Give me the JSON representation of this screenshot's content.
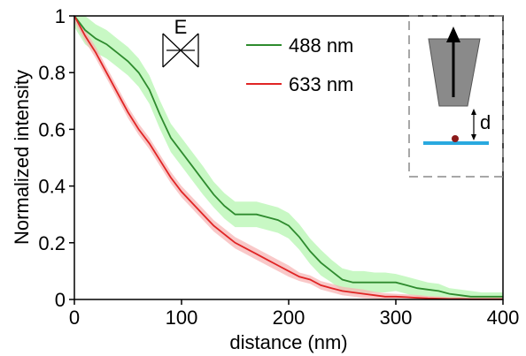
{
  "chart_data": {
    "type": "line",
    "xlabel": "distance (nm)",
    "ylabel": "Normalized intensity",
    "xlim": [
      0,
      400
    ],
    "ylim": [
      0,
      1
    ],
    "x_ticks": [
      "0",
      "100",
      "200",
      "300",
      "400"
    ],
    "y_ticks": [
      "0",
      "0.2",
      "0.4",
      "0.6",
      "0.8",
      "1"
    ],
    "grid": false,
    "legend": "top-center",
    "series": [
      {
        "name": "488 nm",
        "color": "#2e8b2e",
        "band_color": "#b5f5b0",
        "x": [
          0,
          10,
          20,
          30,
          40,
          50,
          60,
          70,
          80,
          90,
          100,
          110,
          120,
          130,
          140,
          150,
          160,
          170,
          180,
          190,
          200,
          210,
          220,
          230,
          240,
          250,
          260,
          270,
          280,
          290,
          300,
          310,
          320,
          330,
          340,
          350,
          360,
          370,
          380,
          390,
          400
        ],
        "y": [
          1.0,
          0.95,
          0.92,
          0.9,
          0.87,
          0.84,
          0.8,
          0.74,
          0.65,
          0.57,
          0.52,
          0.47,
          0.42,
          0.37,
          0.33,
          0.3,
          0.3,
          0.3,
          0.29,
          0.28,
          0.26,
          0.22,
          0.17,
          0.13,
          0.1,
          0.07,
          0.06,
          0.06,
          0.06,
          0.06,
          0.06,
          0.05,
          0.04,
          0.035,
          0.03,
          0.02,
          0.015,
          0.01,
          0.01,
          0.01,
          0.01
        ],
        "band": [
          0.04,
          0.05,
          0.05,
          0.05,
          0.05,
          0.05,
          0.05,
          0.05,
          0.05,
          0.05,
          0.05,
          0.05,
          0.05,
          0.045,
          0.045,
          0.045,
          0.045,
          0.045,
          0.045,
          0.045,
          0.045,
          0.045,
          0.045,
          0.045,
          0.04,
          0.04,
          0.04,
          0.04,
          0.035,
          0.035,
          0.03,
          0.03,
          0.03,
          0.025,
          0.025,
          0.02,
          0.02,
          0.02,
          0.015,
          0.015,
          0.015
        ]
      },
      {
        "name": "633 nm",
        "color": "#e02525",
        "band_color": "#f7b6b6",
        "x": [
          0,
          10,
          20,
          30,
          40,
          50,
          60,
          70,
          80,
          90,
          100,
          110,
          120,
          130,
          140,
          150,
          160,
          170,
          180,
          190,
          200,
          210,
          220,
          230,
          240,
          250,
          260,
          270,
          280,
          290,
          300,
          310,
          320,
          330,
          340,
          350,
          360,
          370,
          380,
          390,
          400
        ],
        "y": [
          1.0,
          0.93,
          0.87,
          0.8,
          0.73,
          0.66,
          0.6,
          0.55,
          0.49,
          0.43,
          0.38,
          0.34,
          0.3,
          0.26,
          0.23,
          0.2,
          0.18,
          0.16,
          0.14,
          0.12,
          0.1,
          0.08,
          0.07,
          0.05,
          0.04,
          0.03,
          0.025,
          0.02,
          0.015,
          0.01,
          0.01,
          0.008,
          0.006,
          0.004,
          0.003,
          0.002,
          0.002,
          0.001,
          0.001,
          0.001,
          0.001
        ],
        "band": [
          0.02,
          0.02,
          0.02,
          0.02,
          0.02,
          0.02,
          0.02,
          0.02,
          0.02,
          0.02,
          0.02,
          0.02,
          0.02,
          0.02,
          0.02,
          0.02,
          0.02,
          0.02,
          0.02,
          0.02,
          0.02,
          0.015,
          0.015,
          0.015,
          0.015,
          0.015,
          0.015,
          0.015,
          0.012,
          0.012,
          0.01,
          0.01,
          0.01,
          0.008,
          0.008,
          0.006,
          0.006,
          0.005,
          0.005,
          0.005,
          0.005
        ]
      }
    ],
    "annotations": {
      "polarization_label": "E",
      "distance_label": "d"
    },
    "colors": {
      "tip": "#8a8a8a",
      "substrate": "#29a9df",
      "particle": "#8b1a1a",
      "inset_border": "#8a8a8a"
    }
  }
}
